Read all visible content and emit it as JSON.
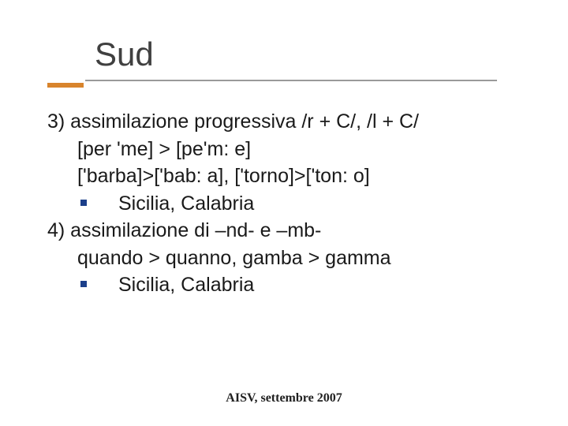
{
  "title": "Sud",
  "content": {
    "line1": "3) assimilazione progressiva /r + C/, /l + C/",
    "line2": "[per 'me] > [pe'm: e]",
    "line3": "['barba]>['bab: a], ['torno]>['ton: o]",
    "bullet1": "Sicilia, Calabria",
    "line4": "4) assimilazione di –nd- e –mb-",
    "line5": "quando > quanno, gamba > gamma",
    "bullet2": "Sicilia, Calabria"
  },
  "footer": "AISV, settembre 2007",
  "colors": {
    "title_text": "#404040",
    "body_text": "#1a1a1a",
    "underline_long": "#9a9a9a",
    "underline_short": "#d8842c",
    "bullet": "#1b3f8a",
    "background": "#ffffff",
    "footer_text": "#202020"
  },
  "typography": {
    "title_fontsize": 42,
    "body_fontsize": 25,
    "footer_fontsize": 16,
    "title_font": "Verdana",
    "body_font": "Verdana",
    "footer_font": "Georgia"
  }
}
